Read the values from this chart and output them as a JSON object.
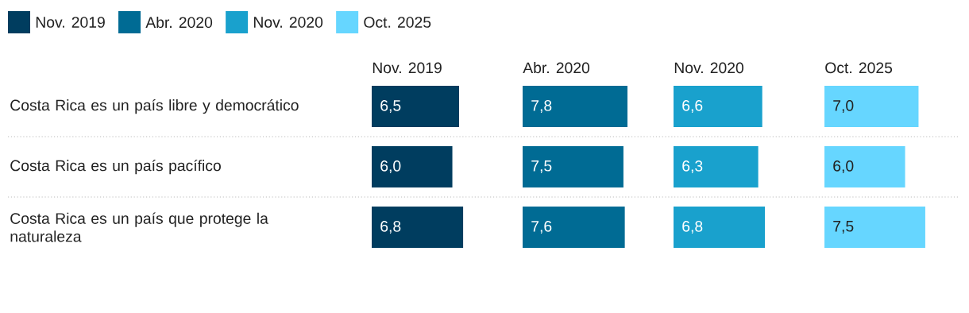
{
  "chart_data": [
    {
      "type": "bar",
      "orientation": "horizontal",
      "legend": "top",
      "title": "Nov. 2019",
      "categories": [
        "Costa Rica es un país libre y democrático",
        "Costa Rica es un país pacífico",
        "Costa Rica es un país que protege la naturaleza"
      ],
      "series": [
        {
          "name": "Nov. 2019",
          "color": "#003d5f",
          "values": [
            6.5,
            6.0,
            6.8
          ],
          "value_labels": [
            "6,5",
            "6,0",
            "6,8"
          ]
        }
      ]
    },
    {
      "type": "bar",
      "orientation": "horizontal",
      "legend": "top",
      "title": "Abr. 2020",
      "categories": [
        null,
        null,
        null
      ],
      "series": [
        {
          "name": "Abr. 2020",
          "color": "#006b94",
          "values": [
            7.8,
            7.5,
            7.6
          ],
          "value_labels": [
            "7,8",
            "7,5",
            "7,6"
          ]
        }
      ]
    },
    {
      "type": "bar",
      "orientation": "horizontal",
      "legend": "top",
      "title": "Nov. 2020",
      "categories": [
        null,
        null,
        null
      ],
      "series": [
        {
          "name": "Nov. 2020",
          "color": "#19a1cd",
          "values": [
            6.6,
            6.3,
            6.8
          ],
          "value_labels": [
            "6,6",
            "6,3",
            "6,8"
          ]
        }
      ]
    },
    {
      "type": "bar",
      "orientation": "horizontal",
      "legend": "top",
      "title": "Oct. 2025",
      "categories": [
        null,
        null,
        null
      ],
      "series": [
        {
          "name": "Oct. 2025",
          "color": "#66d6ff",
          "values": [
            7.0,
            6.0,
            7.5
          ],
          "value_labels": [
            "7,0",
            "6,0",
            "7,5"
          ]
        }
      ]
    }
  ]
}
